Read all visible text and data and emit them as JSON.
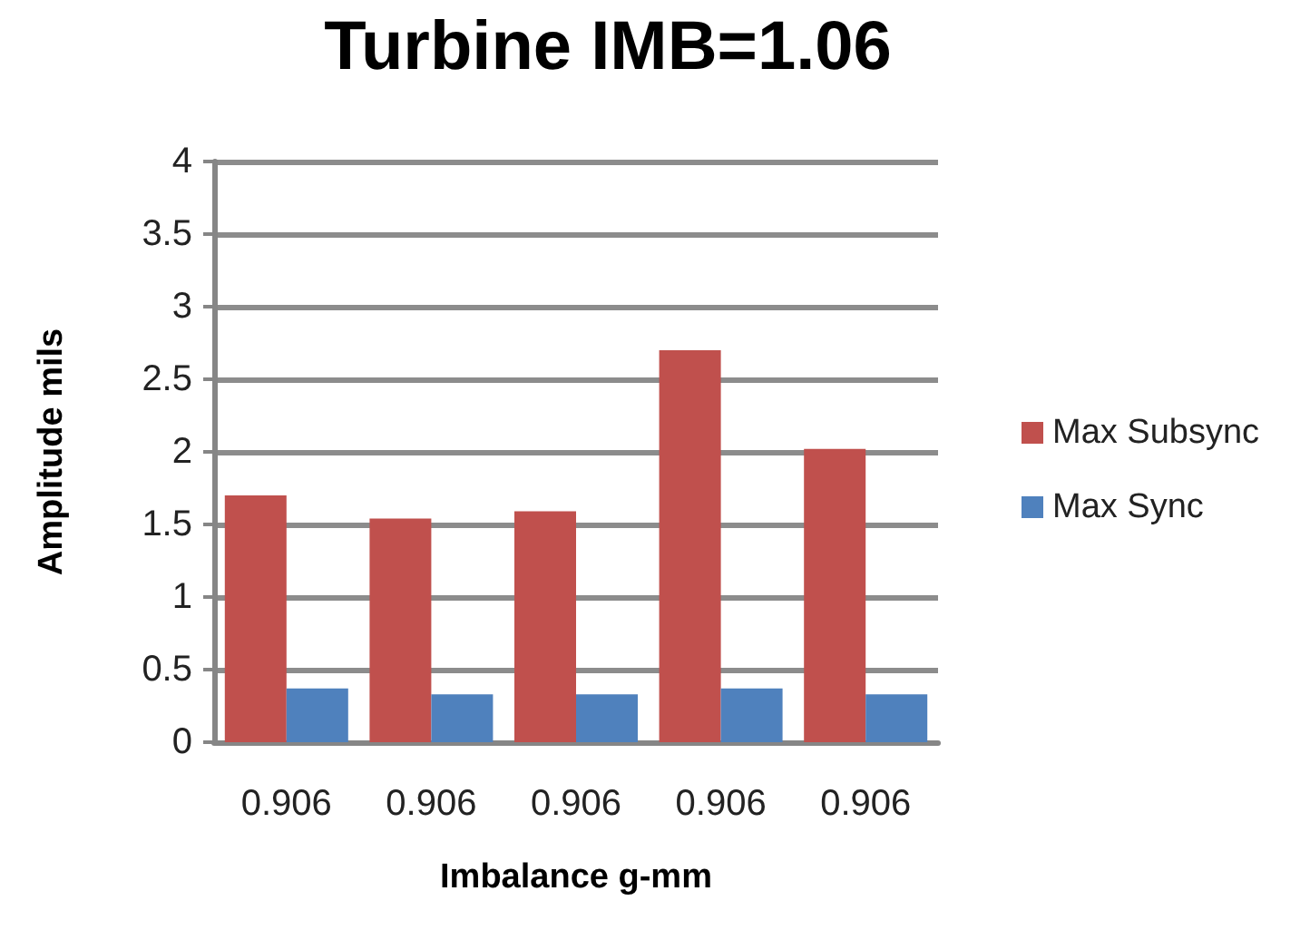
{
  "chart_data": {
    "type": "bar",
    "title": "Turbine IMB=1.06",
    "xlabel": "Imbalance g-mm",
    "ylabel": "Amplitude mils",
    "categories": [
      "0.906",
      "0.906",
      "0.906",
      "0.906",
      "0.906"
    ],
    "series": [
      {
        "name": "Max Subsync",
        "color": "#c0504d",
        "values": [
          1.7,
          1.54,
          1.59,
          2.7,
          2.02
        ]
      },
      {
        "name": "Max Sync",
        "color": "#4f81bd",
        "values": [
          0.37,
          0.33,
          0.33,
          0.37,
          0.33
        ]
      }
    ],
    "ylim": [
      0,
      4
    ],
    "yticks": [
      0,
      {
        "value": 0.5,
        "label": "0.5"
      },
      1,
      {
        "value": 1.5,
        "label": "1.5"
      },
      2,
      {
        "value": 2.5,
        "label": "2.5"
      },
      3,
      {
        "value": 3.5,
        "label": "3.5"
      },
      4
    ],
    "grid": "y",
    "legend": "right"
  }
}
